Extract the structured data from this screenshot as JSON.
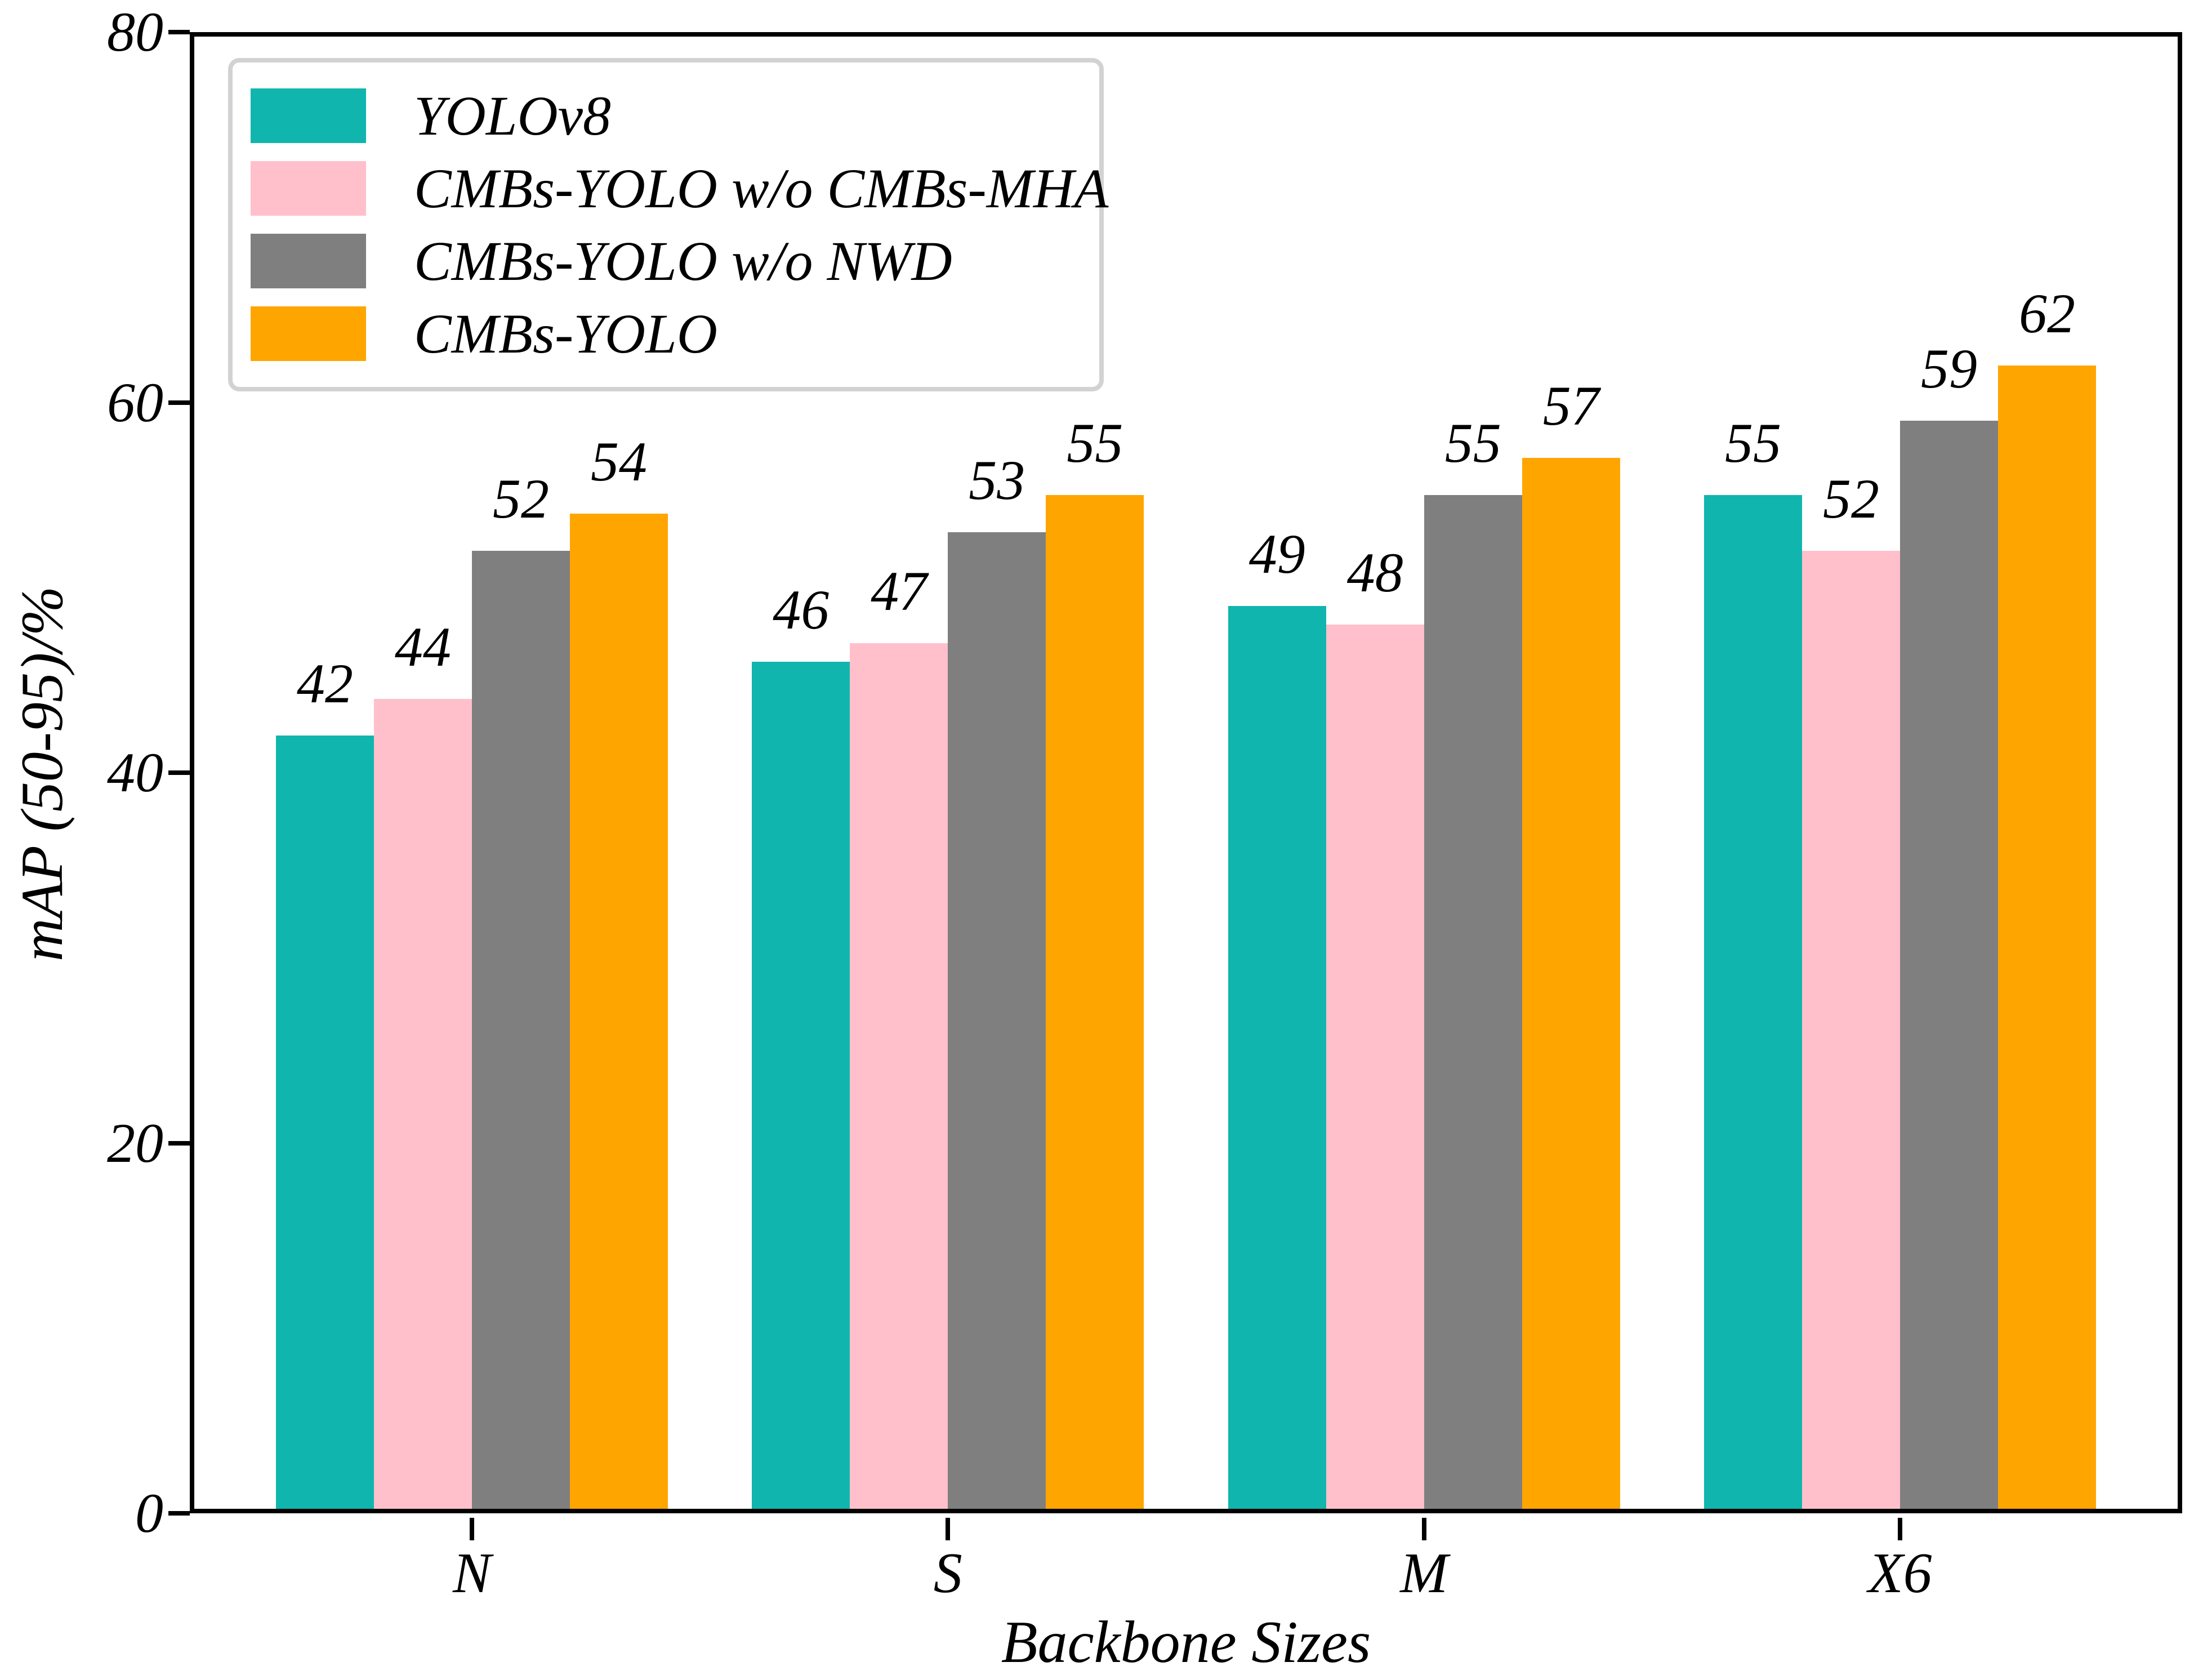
{
  "chart_data": {
    "type": "bar",
    "title": "",
    "categories": [
      "N",
      "S",
      "M",
      "X6"
    ],
    "series": [
      {
        "name": "YOLOv8",
        "color": "#10b5ae",
        "values": [
          42,
          46,
          49,
          55
        ]
      },
      {
        "name": "CMBs-YOLO w/o CMBs-MHA",
        "color": "#ffc0cb",
        "values": [
          44,
          47,
          48,
          52
        ]
      },
      {
        "name": "CMBs-YOLO w/o NWD",
        "color": "#7f7f7f",
        "values": [
          52,
          53,
          55,
          59
        ]
      },
      {
        "name": "CMBs-YOLO",
        "color": "#ffa500",
        "values": [
          54,
          55,
          57,
          62
        ]
      }
    ],
    "xlabel": "Backbone Sizes",
    "ylabel": "mAP (50-95)/%",
    "ylim": [
      0,
      80
    ],
    "yticks": [
      0,
      20,
      40,
      60,
      80
    ],
    "bar_value_labels": true,
    "grid": false,
    "legend_position": "upper-left",
    "axis_color": "#000000",
    "text_color": "#000000",
    "legend_border_color": "#d2d2d2",
    "background_color": "#ffffff"
  }
}
